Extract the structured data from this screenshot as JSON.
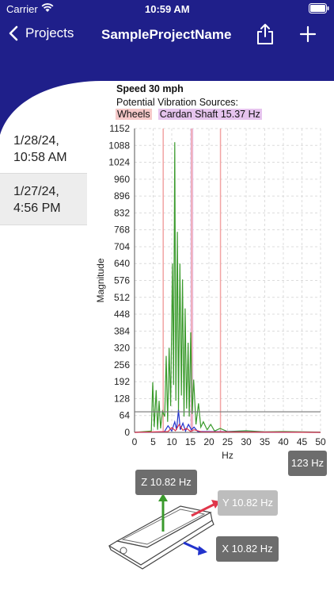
{
  "status_bar": {
    "carrier": "Carrier",
    "time": "10:59 AM"
  },
  "nav": {
    "back_label": "Projects",
    "title": "SampleProjectName"
  },
  "sidebar": {
    "items": [
      {
        "line1": "1/28/24,",
        "line2": "10:58 AM",
        "selected": false
      },
      {
        "line1": "1/27/24,",
        "line2": "4:56 PM",
        "selected": true
      }
    ]
  },
  "chart_header": {
    "speed": "Speed 30 mph",
    "sources_label": "Potential Vibration Sources:",
    "wheels_tag": "Wheels",
    "cardan_tag": "Cardan Shaft 15.37 Hz"
  },
  "chart_data": {
    "type": "line",
    "xlabel": "Hz",
    "ylabel": "Magnitude",
    "xlim": [
      0,
      50
    ],
    "ylim": [
      0,
      1152
    ],
    "x_ticks": [
      0,
      5,
      10,
      15,
      20,
      25,
      30,
      35,
      40,
      45,
      50
    ],
    "y_ticks": [
      0,
      64,
      128,
      192,
      256,
      320,
      384,
      448,
      512,
      576,
      640,
      704,
      768,
      832,
      896,
      960,
      1024,
      1088,
      1152
    ],
    "grid": true,
    "threshold_line": 78,
    "wheel_lines_hz": [
      7.7,
      15.4,
      23.1
    ],
    "cardan_band_hz": [
      15.0,
      15.8
    ],
    "series": [
      {
        "color": "#3a9a2c",
        "points": [
          [
            0,
            0
          ],
          [
            4.5,
            5
          ],
          [
            4.9,
            190
          ],
          [
            5.3,
            20
          ],
          [
            5.8,
            160
          ],
          [
            6.2,
            10
          ],
          [
            6.6,
            120
          ],
          [
            7.0,
            15
          ],
          [
            7.5,
            80
          ],
          [
            8.1,
            60
          ],
          [
            8.5,
            290
          ],
          [
            8.9,
            40
          ],
          [
            9.3,
            320
          ],
          [
            9.7,
            100
          ],
          [
            10.2,
            640
          ],
          [
            10.5,
            180
          ],
          [
            10.8,
            1100
          ],
          [
            11.1,
            120
          ],
          [
            11.5,
            760
          ],
          [
            11.8,
            80
          ],
          [
            12.2,
            640
          ],
          [
            12.6,
            140
          ],
          [
            12.9,
            580
          ],
          [
            13.3,
            60
          ],
          [
            13.6,
            470
          ],
          [
            14.0,
            90
          ],
          [
            14.4,
            340
          ],
          [
            14.7,
            60
          ],
          [
            15.1,
            380
          ],
          [
            15.5,
            70
          ],
          [
            15.9,
            200
          ],
          [
            16.5,
            30
          ],
          [
            17.2,
            110
          ],
          [
            17.8,
            20
          ],
          [
            18.5,
            40
          ],
          [
            19.5,
            10
          ],
          [
            20.5,
            30
          ],
          [
            21.5,
            5
          ],
          [
            23,
            15
          ],
          [
            25,
            3
          ],
          [
            30,
            6
          ],
          [
            35,
            2
          ],
          [
            40,
            3
          ],
          [
            45,
            2
          ],
          [
            50,
            1
          ]
        ]
      },
      {
        "color": "#2233cc",
        "points": [
          [
            0,
            0
          ],
          [
            8,
            2
          ],
          [
            9,
            25
          ],
          [
            10,
            5
          ],
          [
            10.8,
            40
          ],
          [
            11.3,
            10
          ],
          [
            11.8,
            85
          ],
          [
            12.3,
            10
          ],
          [
            13,
            35
          ],
          [
            13.7,
            5
          ],
          [
            14.5,
            30
          ],
          [
            15.3,
            10
          ],
          [
            16,
            20
          ],
          [
            17,
            3
          ],
          [
            50,
            0
          ]
        ]
      },
      {
        "color": "#e0364a",
        "points": [
          [
            0,
            0
          ],
          [
            9,
            3
          ],
          [
            10,
            18
          ],
          [
            11,
            6
          ],
          [
            12,
            30
          ],
          [
            13,
            8
          ],
          [
            14,
            15
          ],
          [
            15,
            4
          ],
          [
            16,
            10
          ],
          [
            18,
            2
          ],
          [
            50,
            0
          ]
        ]
      }
    ]
  },
  "top_right_chip": "123 Hz",
  "sensor": {
    "z_label": "Z 10.82 Hz",
    "y_label": "Y 10.82 Hz",
    "x_label": "X 10.82 Hz",
    "colors": {
      "z": "#3a9a2c",
      "y": "#e0364a",
      "x": "#2233cc",
      "chip_dark": "#6d6d6d",
      "chip_light": "#bdbdbd"
    }
  },
  "colors": {
    "nav_bg": "#1f1f8a",
    "wheels_bg": "#f6c9c9",
    "cardan_bg": "#e6c4ee",
    "selected_row": "#ededed"
  }
}
